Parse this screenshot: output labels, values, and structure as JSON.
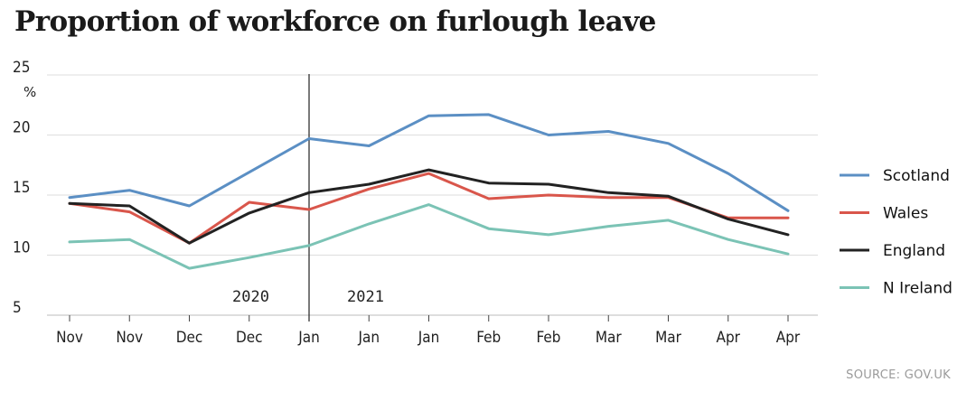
{
  "title": "Proportion of workforce on furlough leave",
  "source": "SOURCE: GOV.UK",
  "chart_data": {
    "type": "line",
    "title": "Proportion of workforce on furlough leave",
    "ylabel": "%",
    "xlabel": "",
    "ylim": [
      5,
      25
    ],
    "yticks": [
      5,
      10,
      15,
      20,
      25
    ],
    "grid": true,
    "legend": "right",
    "categories": [
      "Nov",
      "Nov",
      "Dec",
      "Dec",
      "Jan",
      "Jan",
      "Jan",
      "Feb",
      "Feb",
      "Mar",
      "Mar",
      "Apr",
      "Apr"
    ],
    "year_divider": {
      "after_index": 4,
      "left_label": "2020",
      "right_label": "2021"
    },
    "series": [
      {
        "name": "Scotland",
        "color": "#5b8fc4",
        "values": [
          14.8,
          15.4,
          14.1,
          16.9,
          19.7,
          19.1,
          21.6,
          21.7,
          20.0,
          20.3,
          19.3,
          16.8,
          13.7
        ]
      },
      {
        "name": "Wales",
        "color": "#d9564b",
        "values": [
          14.3,
          13.6,
          11.0,
          14.4,
          13.8,
          15.5,
          16.8,
          14.7,
          15.0,
          14.8,
          14.8,
          13.1,
          13.1
        ]
      },
      {
        "name": "England",
        "color": "#222222",
        "values": [
          14.3,
          14.1,
          11.0,
          13.5,
          15.2,
          15.9,
          17.1,
          16.0,
          15.9,
          15.2,
          14.9,
          13.0,
          11.7
        ]
      },
      {
        "name": "N Ireland",
        "color": "#7bc3b5",
        "values": [
          11.1,
          11.3,
          8.9,
          9.8,
          10.8,
          12.6,
          14.2,
          12.2,
          11.7,
          12.4,
          12.9,
          11.3,
          10.1
        ]
      }
    ]
  }
}
